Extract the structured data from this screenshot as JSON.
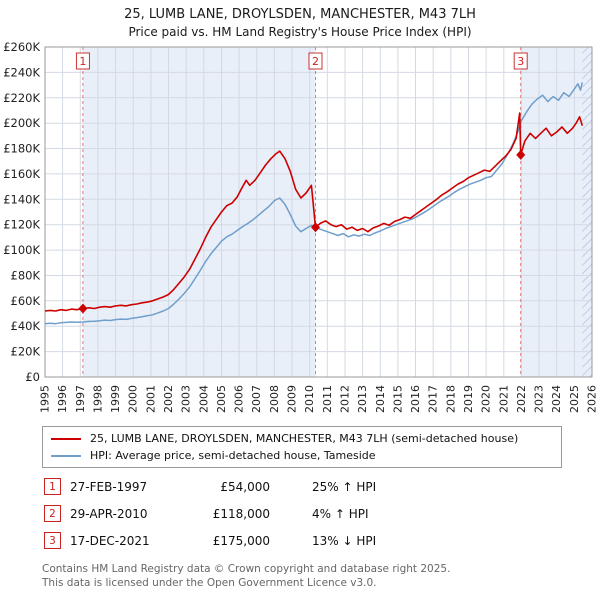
{
  "header": {
    "title": "25, LUMB LANE, DROYLSDEN, MANCHESTER, M43 7LH",
    "subtitle": "Price paid vs. HM Land Registry's House Price Index (HPI)"
  },
  "chart_data": {
    "type": "line",
    "x_range": [
      1995,
      2026
    ],
    "ylim": [
      0,
      260000
    ],
    "x_ticks": [
      1995,
      1996,
      1997,
      1998,
      1999,
      2000,
      2001,
      2002,
      2003,
      2004,
      2005,
      2006,
      2007,
      2008,
      2009,
      2010,
      2011,
      2012,
      2013,
      2014,
      2015,
      2016,
      2017,
      2018,
      2019,
      2020,
      2021,
      2022,
      2023,
      2024,
      2025,
      2026
    ],
    "y_ticks": [
      0,
      20000,
      40000,
      60000,
      80000,
      100000,
      120000,
      140000,
      160000,
      180000,
      200000,
      220000,
      240000,
      260000
    ],
    "grid": true,
    "shade_color": "#e9eff9",
    "shade_regions": [
      [
        1997.15,
        2010.33
      ],
      [
        2021.96,
        2026
      ]
    ],
    "hatch_region": [
      2025.45,
      2026
    ],
    "hatch_color": "#aebfdc",
    "sale_line_color": "#e07878",
    "marker_color": "#cc0000",
    "series": [
      {
        "name": "25, LUMB LANE, DROYLSDEN, MANCHESTER, M43 7LH (semi-detached house)",
        "color": "#cc0000",
        "width": 1.6,
        "points": [
          [
            1995.0,
            52000
          ],
          [
            1995.3,
            52500
          ],
          [
            1995.6,
            52000
          ],
          [
            1995.9,
            53000
          ],
          [
            1996.2,
            52500
          ],
          [
            1996.5,
            53500
          ],
          [
            1996.8,
            53000
          ],
          [
            1997.15,
            54000
          ],
          [
            1997.5,
            54500
          ],
          [
            1997.8,
            54000
          ],
          [
            1998.1,
            55000
          ],
          [
            1998.4,
            55500
          ],
          [
            1998.7,
            55000
          ],
          [
            1999.0,
            56000
          ],
          [
            1999.3,
            56500
          ],
          [
            1999.6,
            56000
          ],
          [
            1999.9,
            57000
          ],
          [
            2000.2,
            57500
          ],
          [
            2000.5,
            58500
          ],
          [
            2000.8,
            59000
          ],
          [
            2001.1,
            60000
          ],
          [
            2001.4,
            61500
          ],
          [
            2001.7,
            63000
          ],
          [
            2002.0,
            65000
          ],
          [
            2002.3,
            69000
          ],
          [
            2002.6,
            74000
          ],
          [
            2002.9,
            79000
          ],
          [
            2003.2,
            85000
          ],
          [
            2003.5,
            93000
          ],
          [
            2003.8,
            101000
          ],
          [
            2004.1,
            110000
          ],
          [
            2004.4,
            118000
          ],
          [
            2004.7,
            124000
          ],
          [
            2005.0,
            130000
          ],
          [
            2005.3,
            135000
          ],
          [
            2005.6,
            137000
          ],
          [
            2005.9,
            142000
          ],
          [
            2006.2,
            150000
          ],
          [
            2006.4,
            155000
          ],
          [
            2006.6,
            151000
          ],
          [
            2006.9,
            155000
          ],
          [
            2007.2,
            161000
          ],
          [
            2007.5,
            167000
          ],
          [
            2007.8,
            172000
          ],
          [
            2008.1,
            176000
          ],
          [
            2008.3,
            178000
          ],
          [
            2008.6,
            172000
          ],
          [
            2008.9,
            162000
          ],
          [
            2009.2,
            148000
          ],
          [
            2009.5,
            141000
          ],
          [
            2009.8,
            145000
          ],
          [
            2010.1,
            151000
          ],
          [
            2010.33,
            118000
          ],
          [
            2010.6,
            121000
          ],
          [
            2010.9,
            123000
          ],
          [
            2011.2,
            120000
          ],
          [
            2011.5,
            118500
          ],
          [
            2011.8,
            120000
          ],
          [
            2012.1,
            116500
          ],
          [
            2012.4,
            118000
          ],
          [
            2012.7,
            115500
          ],
          [
            2013.0,
            117000
          ],
          [
            2013.3,
            114500
          ],
          [
            2013.6,
            117500
          ],
          [
            2013.9,
            119000
          ],
          [
            2014.2,
            121000
          ],
          [
            2014.5,
            119500
          ],
          [
            2014.8,
            122500
          ],
          [
            2015.1,
            124000
          ],
          [
            2015.4,
            126000
          ],
          [
            2015.7,
            125000
          ],
          [
            2016.0,
            128000
          ],
          [
            2016.3,
            131000
          ],
          [
            2016.6,
            134000
          ],
          [
            2016.9,
            137000
          ],
          [
            2017.2,
            140000
          ],
          [
            2017.5,
            143500
          ],
          [
            2017.8,
            146000
          ],
          [
            2018.1,
            149000
          ],
          [
            2018.4,
            152000
          ],
          [
            2018.7,
            154000
          ],
          [
            2019.0,
            157000
          ],
          [
            2019.3,
            159000
          ],
          [
            2019.6,
            161000
          ],
          [
            2019.9,
            163000
          ],
          [
            2020.2,
            162000
          ],
          [
            2020.5,
            166000
          ],
          [
            2020.8,
            170000
          ],
          [
            2021.1,
            174000
          ],
          [
            2021.4,
            179000
          ],
          [
            2021.7,
            188000
          ],
          [
            2021.9,
            208000
          ],
          [
            2021.96,
            175000
          ],
          [
            2022.2,
            186000
          ],
          [
            2022.5,
            192000
          ],
          [
            2022.8,
            188000
          ],
          [
            2023.1,
            192000
          ],
          [
            2023.4,
            196000
          ],
          [
            2023.7,
            190000
          ],
          [
            2024.0,
            193000
          ],
          [
            2024.3,
            197000
          ],
          [
            2024.6,
            192000
          ],
          [
            2024.9,
            196000
          ],
          [
            2025.1,
            200000
          ],
          [
            2025.3,
            205000
          ],
          [
            2025.45,
            198000
          ]
        ]
      },
      {
        "name": "HPI: Average price, semi-detached house, Tameside",
        "color": "#6f9ecb",
        "width": 1.5,
        "points": [
          [
            1995.0,
            42000
          ],
          [
            1995.3,
            42300
          ],
          [
            1995.6,
            42000
          ],
          [
            1995.9,
            42800
          ],
          [
            1996.2,
            43000
          ],
          [
            1996.5,
            43300
          ],
          [
            1996.8,
            43100
          ],
          [
            1997.15,
            43300
          ],
          [
            1997.5,
            43800
          ],
          [
            1997.8,
            44000
          ],
          [
            1998.1,
            44300
          ],
          [
            1998.4,
            44800
          ],
          [
            1998.7,
            44500
          ],
          [
            1999.0,
            45200
          ],
          [
            1999.3,
            45600
          ],
          [
            1999.6,
            45400
          ],
          [
            1999.9,
            46200
          ],
          [
            2000.2,
            46800
          ],
          [
            2000.5,
            47500
          ],
          [
            2000.8,
            48200
          ],
          [
            2001.1,
            49000
          ],
          [
            2001.4,
            50500
          ],
          [
            2001.7,
            52000
          ],
          [
            2002.0,
            54000
          ],
          [
            2002.3,
            57500
          ],
          [
            2002.6,
            61500
          ],
          [
            2002.9,
            66000
          ],
          [
            2003.2,
            71000
          ],
          [
            2003.5,
            77500
          ],
          [
            2003.8,
            84000
          ],
          [
            2004.1,
            91000
          ],
          [
            2004.4,
            97000
          ],
          [
            2004.7,
            102000
          ],
          [
            2005.0,
            107000
          ],
          [
            2005.3,
            110500
          ],
          [
            2005.6,
            112500
          ],
          [
            2005.9,
            115500
          ],
          [
            2006.2,
            118500
          ],
          [
            2006.5,
            121000
          ],
          [
            2006.8,
            124000
          ],
          [
            2007.1,
            127500
          ],
          [
            2007.4,
            131000
          ],
          [
            2007.7,
            134500
          ],
          [
            2008.0,
            139000
          ],
          [
            2008.3,
            141000
          ],
          [
            2008.6,
            136000
          ],
          [
            2008.9,
            128000
          ],
          [
            2009.2,
            119000
          ],
          [
            2009.5,
            114500
          ],
          [
            2009.8,
            117000
          ],
          [
            2010.1,
            119500
          ],
          [
            2010.4,
            117500
          ],
          [
            2010.7,
            116000
          ],
          [
            2011.0,
            114500
          ],
          [
            2011.3,
            113000
          ],
          [
            2011.6,
            111500
          ],
          [
            2011.9,
            113000
          ],
          [
            2012.2,
            110500
          ],
          [
            2012.5,
            112000
          ],
          [
            2012.8,
            111000
          ],
          [
            2013.1,
            112500
          ],
          [
            2013.4,
            111500
          ],
          [
            2013.7,
            113500
          ],
          [
            2014.0,
            115000
          ],
          [
            2014.3,
            117000
          ],
          [
            2014.6,
            118500
          ],
          [
            2014.9,
            120000
          ],
          [
            2015.2,
            121500
          ],
          [
            2015.5,
            123000
          ],
          [
            2015.8,
            124500
          ],
          [
            2016.1,
            126500
          ],
          [
            2016.4,
            129000
          ],
          [
            2016.7,
            131500
          ],
          [
            2017.0,
            134500
          ],
          [
            2017.3,
            137500
          ],
          [
            2017.6,
            140000
          ],
          [
            2017.9,
            142500
          ],
          [
            2018.2,
            145500
          ],
          [
            2018.5,
            148000
          ],
          [
            2018.8,
            150000
          ],
          [
            2019.1,
            152000
          ],
          [
            2019.4,
            153500
          ],
          [
            2019.7,
            155000
          ],
          [
            2020.0,
            157000
          ],
          [
            2020.3,
            158000
          ],
          [
            2020.6,
            163000
          ],
          [
            2020.9,
            168000
          ],
          [
            2021.2,
            175000
          ],
          [
            2021.5,
            183000
          ],
          [
            2021.8,
            193000
          ],
          [
            2022.0,
            202000
          ],
          [
            2022.3,
            209000
          ],
          [
            2022.6,
            215000
          ],
          [
            2022.9,
            219000
          ],
          [
            2023.2,
            222000
          ],
          [
            2023.5,
            217000
          ],
          [
            2023.8,
            221000
          ],
          [
            2024.1,
            218000
          ],
          [
            2024.4,
            224000
          ],
          [
            2024.7,
            221000
          ],
          [
            2025.0,
            227000
          ],
          [
            2025.2,
            231000
          ],
          [
            2025.35,
            226000
          ],
          [
            2025.45,
            232000
          ]
        ]
      }
    ],
    "sales": [
      {
        "label": "1",
        "x": 1997.15,
        "y": 54000
      },
      {
        "label": "2",
        "x": 2010.33,
        "y": 118000
      },
      {
        "label": "3",
        "x": 2021.96,
        "y": 175000
      }
    ]
  },
  "sales_table": {
    "rows": [
      {
        "num": "1",
        "date": "27-FEB-1997",
        "price": "£54,000",
        "hpi": "25% ↑ HPI"
      },
      {
        "num": "2",
        "date": "29-APR-2010",
        "price": "£118,000",
        "hpi": "4% ↑ HPI"
      },
      {
        "num": "3",
        "date": "17-DEC-2021",
        "price": "£175,000",
        "hpi": "13% ↓ HPI"
      }
    ]
  },
  "footer": {
    "line1": "Contains HM Land Registry data © Crown copyright and database right 2025.",
    "line2": "This data is licensed under the Open Government Licence v3.0."
  }
}
